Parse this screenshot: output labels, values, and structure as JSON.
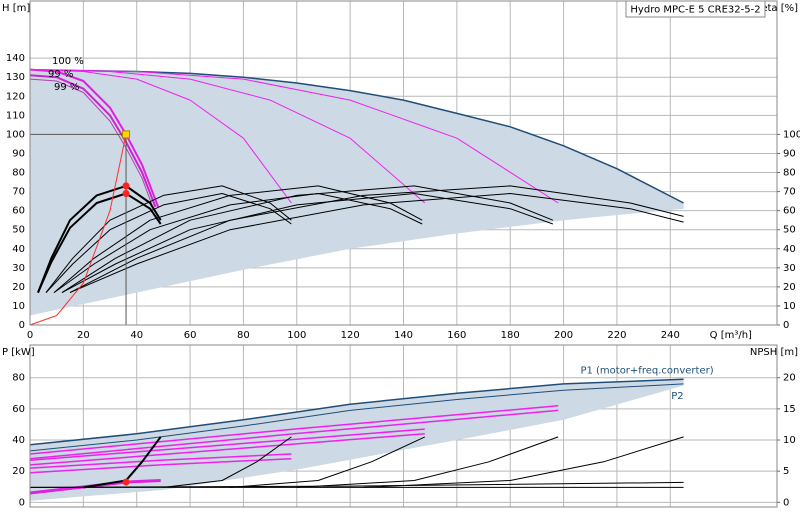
{
  "chart_data": [
    {
      "type": "line",
      "title": "Hydro MPC-E 5 CRE32-5-2",
      "xlabel": "Q [m³/h]",
      "ylabel": "H [m]",
      "y2label": "eta [%]",
      "annotations": [
        "100 %",
        "99 %",
        "99 %"
      ],
      "xlim": [
        0,
        280
      ],
      "xticks": [
        0,
        20,
        40,
        60,
        80,
        100,
        120,
        140,
        160,
        180,
        200,
        220,
        240
      ],
      "ylim": [
        0,
        170
      ],
      "yticks": [
        0,
        10,
        20,
        30,
        40,
        50,
        60,
        70,
        80,
        90,
        100,
        110,
        120,
        130,
        140
      ],
      "y2lim": [
        0,
        170
      ],
      "y2ticks": [
        0,
        10,
        20,
        30,
        40,
        50,
        60,
        70,
        80,
        90,
        100
      ],
      "grid": true,
      "series": [
        {
          "fill": "#cdd9e4",
          "x": [
            0,
            20,
            40,
            60,
            80,
            100,
            120,
            140,
            160,
            180,
            200,
            220,
            245,
            245,
            200,
            160,
            120,
            80,
            40,
            20,
            0
          ],
          "values": [
            134,
            133.5,
            133,
            132,
            130,
            127,
            123,
            118,
            111,
            104,
            94,
            82,
            64,
            61,
            55,
            48,
            40,
            29,
            17,
            11,
            5
          ]
        },
        {
          "color": "#1f4e79",
          "width": 1.5,
          "x": [
            0,
            20,
            40,
            60,
            80,
            100,
            120,
            140,
            160,
            180,
            200,
            220,
            245
          ],
          "values": [
            134,
            133.5,
            133,
            132,
            130,
            127,
            123,
            118,
            111,
            104,
            94,
            82,
            64
          ]
        },
        {
          "color": "#e020e0",
          "width": 2,
          "x": [
            0,
            10,
            20,
            30,
            36,
            42,
            48
          ],
          "values": [
            134,
            133,
            128,
            114,
            100,
            84,
            62
          ]
        },
        {
          "color": "#d020d0",
          "width": 2,
          "x": [
            0,
            10,
            20,
            30,
            36,
            42,
            47
          ],
          "values": [
            131,
            130,
            124,
            110,
            96,
            80,
            62
          ]
        },
        {
          "color": "#b040b0",
          "width": 1,
          "x": [
            0,
            10,
            20,
            30,
            36,
            42,
            46
          ],
          "values": [
            129,
            128,
            122,
            107,
            93,
            77,
            62
          ]
        },
        {
          "color": "#ee22ee",
          "width": 1,
          "x": [
            0,
            20,
            40,
            60,
            80,
            98
          ],
          "values": [
            134,
            133,
            129,
            118,
            98,
            64
          ]
        },
        {
          "color": "#ee22ee",
          "width": 1,
          "x": [
            0,
            30,
            60,
            90,
            120,
            148
          ],
          "values": [
            134,
            133,
            129,
            118,
            98,
            64
          ]
        },
        {
          "color": "#ee22ee",
          "width": 1,
          "x": [
            0,
            40,
            80,
            120,
            160,
            198
          ],
          "values": [
            134,
            133,
            129,
            118,
            98,
            64
          ]
        },
        {
          "color": "#000000",
          "width": 2,
          "axis": "y2",
          "x": [
            3,
            8,
            15,
            25,
            36,
            45,
            49
          ],
          "values": [
            17,
            35,
            55,
            68,
            73,
            64,
            55
          ]
        },
        {
          "color": "#000000",
          "width": 2,
          "axis": "y2",
          "x": [
            3,
            8,
            15,
            25,
            36,
            45,
            49
          ],
          "values": [
            17,
            33,
            51,
            64,
            69,
            61,
            53
          ]
        },
        {
          "color": "#000000",
          "width": 1,
          "axis": "y2",
          "x": [
            6,
            16,
            30,
            50,
            72,
            90,
            98
          ],
          "values": [
            17,
            35,
            55,
            68,
            73,
            64,
            55
          ]
        },
        {
          "color": "#000000",
          "width": 1,
          "axis": "y2",
          "x": [
            6,
            16,
            30,
            50,
            72,
            90,
            98
          ],
          "values": [
            17,
            32,
            50,
            63,
            69,
            61,
            53
          ]
        },
        {
          "color": "#000000",
          "width": 1,
          "axis": "y2",
          "x": [
            9,
            24,
            45,
            75,
            108,
            135,
            147
          ],
          "values": [
            17,
            35,
            55,
            68,
            73,
            64,
            55
          ]
        },
        {
          "color": "#000000",
          "width": 1,
          "axis": "y2",
          "x": [
            9,
            24,
            45,
            75,
            108,
            135,
            147
          ],
          "values": [
            17,
            32,
            50,
            63,
            69,
            61,
            53
          ]
        },
        {
          "color": "#000000",
          "width": 1,
          "axis": "y2",
          "x": [
            12,
            32,
            60,
            100,
            144,
            180,
            196
          ],
          "values": [
            17,
            35,
            55,
            68,
            73,
            64,
            55
          ]
        },
        {
          "color": "#000000",
          "width": 1,
          "axis": "y2",
          "x": [
            12,
            32,
            60,
            100,
            144,
            180,
            196
          ],
          "values": [
            17,
            32,
            50,
            63,
            69,
            61,
            53
          ]
        },
        {
          "color": "#000000",
          "width": 1,
          "axis": "y2",
          "x": [
            15,
            40,
            75,
            125,
            180,
            225,
            245
          ],
          "values": [
            17,
            35,
            55,
            68,
            73,
            64,
            57
          ]
        },
        {
          "color": "#000000",
          "width": 1,
          "axis": "y2",
          "x": [
            15,
            40,
            75,
            125,
            180,
            225,
            245
          ],
          "values": [
            17,
            32,
            50,
            63,
            69,
            61,
            54
          ]
        },
        {
          "color": "#ff3030",
          "width": 1,
          "x": [
            0,
            10,
            20,
            30,
            36
          ],
          "values": [
            0,
            5,
            22,
            60,
            100
          ]
        }
      ],
      "markers": [
        {
          "x": 36,
          "y": 100,
          "color": "#ffd700",
          "guide": true
        },
        {
          "x": 36,
          "y": 73,
          "axis": "y2",
          "color": "#ff2020"
        },
        {
          "x": 36,
          "y": 69,
          "axis": "y2",
          "color": "#ff2020"
        }
      ]
    },
    {
      "type": "line",
      "ylabel": "P [kW]",
      "y2label": "NPSH [m]",
      "xlim": [
        0,
        280
      ],
      "xticks": [
        0,
        20,
        40,
        60,
        80,
        100,
        120,
        140,
        160,
        180,
        200,
        220,
        240
      ],
      "xtick_labels": false,
      "ylim": [
        -3,
        101
      ],
      "yticks": [
        0,
        20,
        40,
        60,
        80
      ],
      "y2lim": [
        -0.75,
        25.25
      ],
      "y2ticks": [
        0,
        5,
        10,
        15,
        20
      ],
      "grid": true,
      "series": [
        {
          "fill": "#cdd9e4",
          "x": [
            0,
            40,
            80,
            120,
            160,
            200,
            245,
            245,
            200,
            160,
            100,
            50,
            0
          ],
          "values": [
            37,
            44,
            53,
            63,
            70,
            76,
            79,
            75,
            53,
            40,
            21,
            8,
            1
          ]
        },
        {
          "name": "P1 (motor+freq.converter)",
          "color": "#1f4e79",
          "width": 1.5,
          "x": [
            0,
            40,
            80,
            120,
            160,
            200,
            245
          ],
          "values": [
            37,
            44,
            53,
            63,
            70,
            76,
            79
          ]
        },
        {
          "name": "P2",
          "color": "#1f4e79",
          "width": 1,
          "x": [
            0,
            40,
            80,
            120,
            160,
            200,
            245
          ],
          "values": [
            33,
            40,
            49,
            59,
            66,
            72,
            76
          ]
        },
        {
          "color": "#e020e0",
          "width": 3,
          "x": [
            0,
            36,
            49
          ],
          "values": [
            6,
            13,
            14
          ]
        },
        {
          "color": "#ee22ee",
          "width": 1.5,
          "x": [
            0,
            49,
            98
          ],
          "values": [
            22,
            27,
            31
          ]
        },
        {
          "color": "#ee22ee",
          "width": 1.5,
          "x": [
            0,
            49,
            98
          ],
          "values": [
            19,
            24,
            28
          ]
        },
        {
          "color": "#ee22ee",
          "width": 1.5,
          "x": [
            0,
            74,
            148
          ],
          "values": [
            27,
            37,
            47
          ]
        },
        {
          "color": "#ee22ee",
          "width": 1.5,
          "x": [
            0,
            74,
            148
          ],
          "values": [
            24,
            34,
            44
          ]
        },
        {
          "color": "#ee22ee",
          "width": 1.5,
          "x": [
            0,
            99,
            198
          ],
          "values": [
            31,
            47,
            62
          ]
        },
        {
          "color": "#ee22ee",
          "width": 1.5,
          "x": [
            0,
            99,
            198
          ],
          "values": [
            28,
            44,
            59
          ]
        },
        {
          "color": "#000000",
          "width": 2,
          "axis": "y2",
          "x": [
            20,
            36,
            42,
            49
          ],
          "values": [
            2.4,
            3.5,
            6.5,
            10.5
          ]
        },
        {
          "color": "#000000",
          "width": 1,
          "axis": "y2",
          "x": [
            50,
            72,
            85,
            98
          ],
          "values": [
            2.4,
            3.5,
            6.5,
            10.5
          ]
        },
        {
          "color": "#000000",
          "width": 1,
          "axis": "y2",
          "x": [
            75,
            108,
            128,
            148
          ],
          "values": [
            2.4,
            3.5,
            6.5,
            10.5
          ]
        },
        {
          "color": "#000000",
          "width": 1,
          "axis": "y2",
          "x": [
            100,
            144,
            172,
            198
          ],
          "values": [
            2.4,
            3.5,
            6.5,
            10.5
          ]
        },
        {
          "color": "#000000",
          "width": 1,
          "axis": "y2",
          "x": [
            125,
            180,
            215,
            245
          ],
          "values": [
            2.4,
            3.5,
            6.5,
            10.5
          ]
        },
        {
          "color": "#000000",
          "width": 1,
          "axis": "y2",
          "x": [
            0,
            245
          ],
          "values": [
            2.4,
            2.4
          ]
        },
        {
          "color": "#000000",
          "width": 1,
          "axis": "y2",
          "x": [
            0,
            120,
            245
          ],
          "values": [
            2.4,
            2.6,
            3.2
          ]
        }
      ],
      "markers": [
        {
          "x": 36,
          "y": 13,
          "color": "#ff2020"
        }
      ]
    }
  ]
}
